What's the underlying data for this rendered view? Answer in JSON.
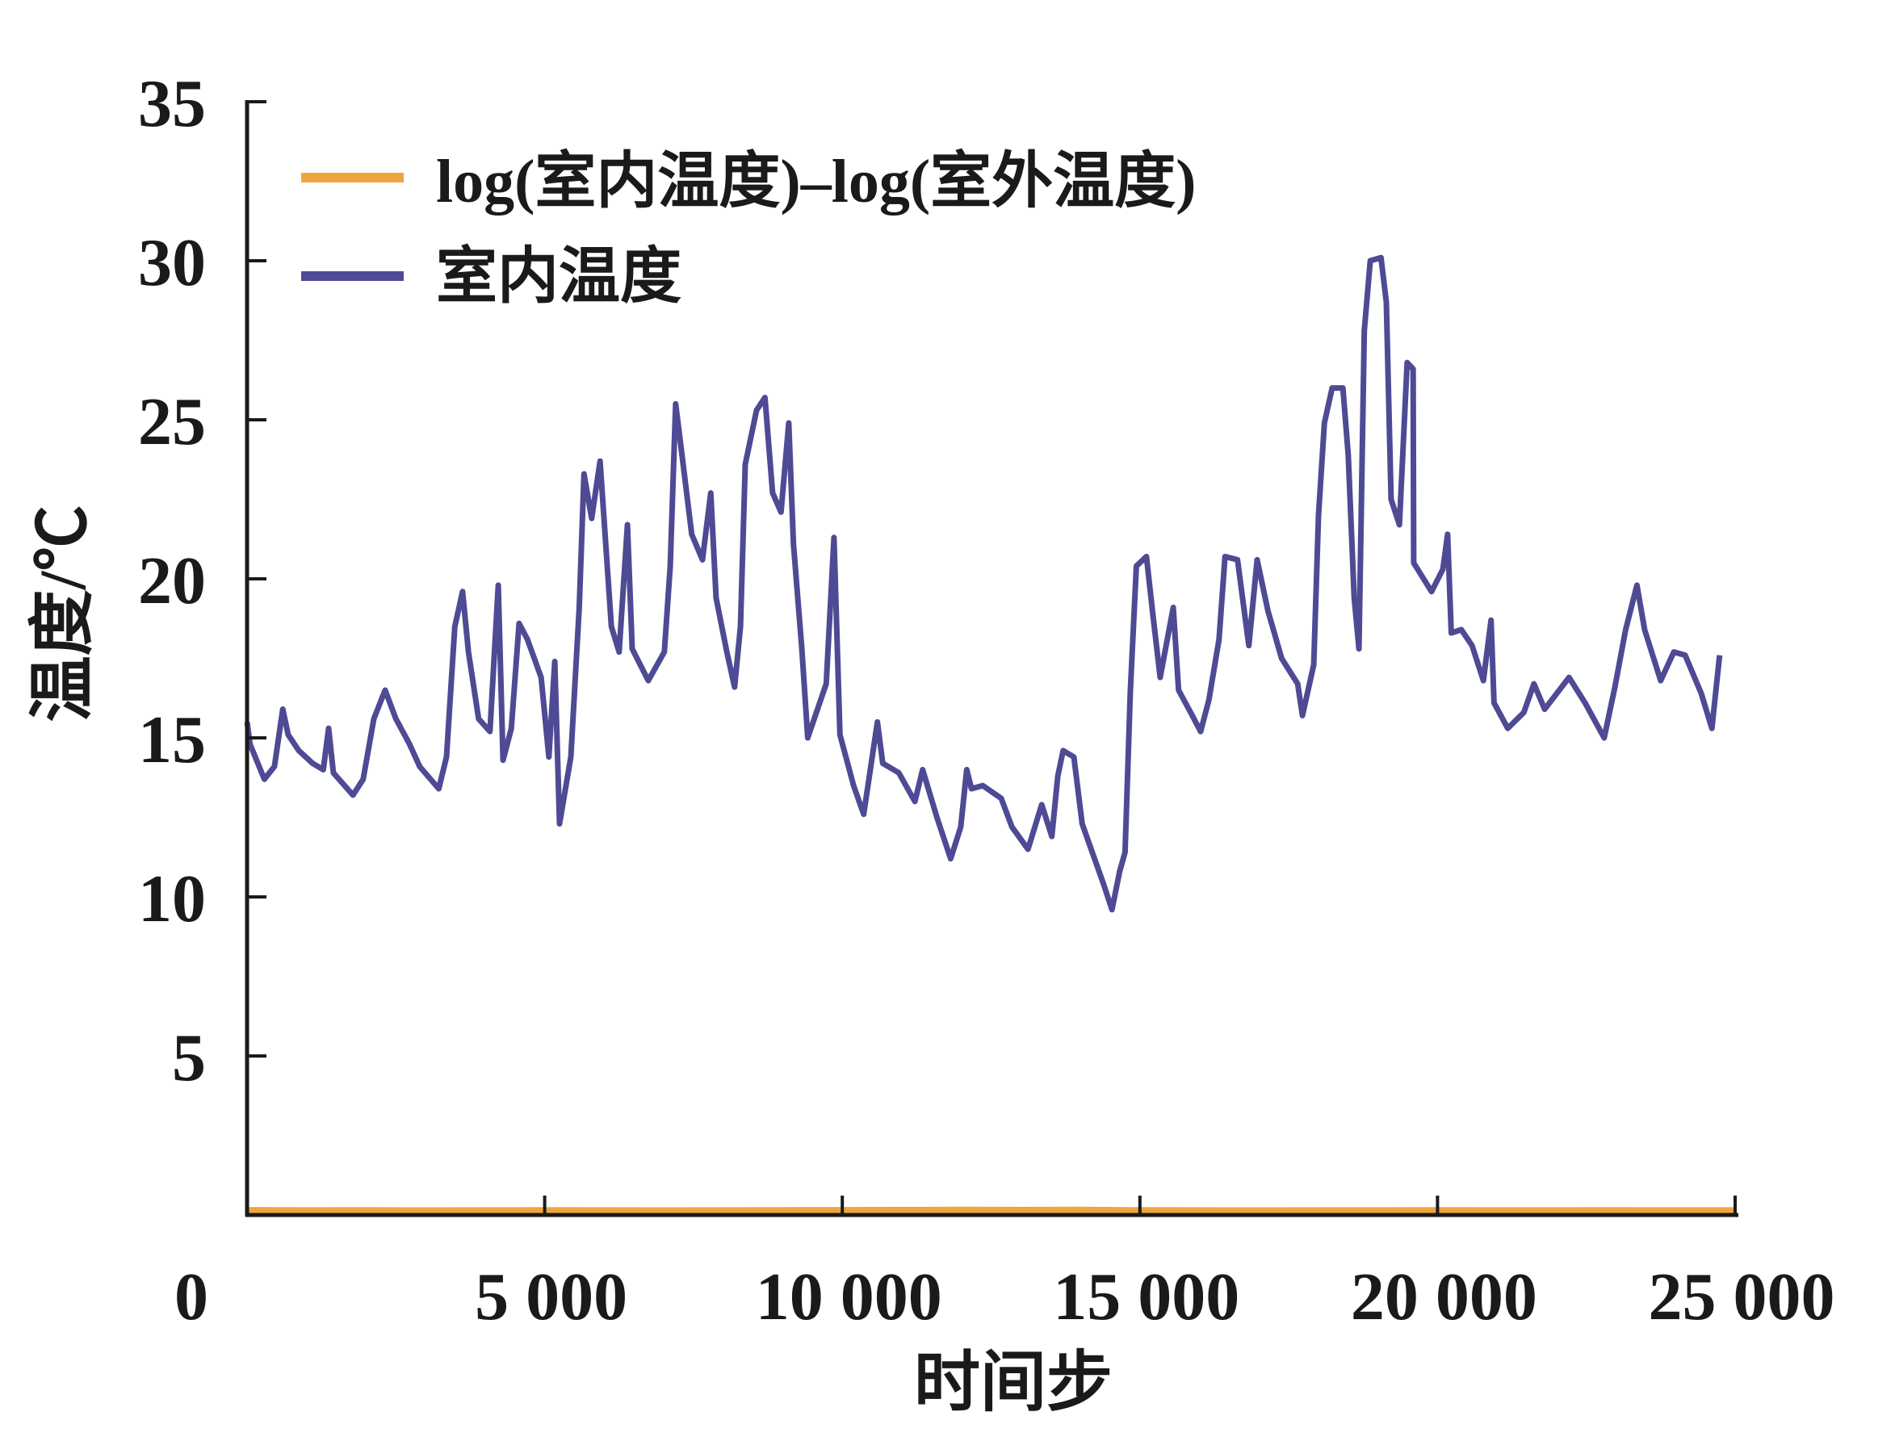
{
  "chart_data": {
    "type": "line",
    "title": "",
    "xlabel": "时间步",
    "ylabel": "温度/℃",
    "xlim": [
      0,
      25000
    ],
    "ylim": [
      0,
      35
    ],
    "x_ticks": [
      0,
      5000,
      10000,
      15000,
      20000,
      25000
    ],
    "x_tick_labels": [
      "0",
      "5 000",
      "10 000",
      "15 000",
      "20 000",
      "25 000"
    ],
    "y_ticks": [
      5,
      10,
      15,
      20,
      25,
      30,
      35
    ],
    "y_tick_labels": [
      "5",
      "10",
      "15",
      "20",
      "25",
      "30",
      "35"
    ],
    "grid": false,
    "legend_position": "top-left",
    "series": [
      {
        "name": "log(室内温度)–log(室外温度)",
        "color": "#F0A43E",
        "x": [
          0,
          1000,
          2000,
          3000,
          4000,
          5000,
          6000,
          7000,
          8000,
          9000,
          10000,
          11000,
          12000,
          13000,
          14000,
          15000,
          16000,
          17000,
          18000,
          19000,
          20000,
          21000,
          22000,
          23000,
          24000,
          25000
        ],
        "values": [
          0.15,
          0.1,
          0.12,
          0.08,
          0.1,
          0.12,
          0.1,
          0.08,
          0.1,
          0.12,
          0.15,
          0.18,
          0.2,
          0.18,
          0.2,
          0.12,
          0.1,
          0.08,
          0.1,
          0.1,
          0.12,
          0.1,
          0.1,
          0.12,
          0.1,
          0.1
        ]
      },
      {
        "name": "室内温度",
        "color": "#4F4A94",
        "x": [
          0,
          50,
          290,
          460,
          600,
          690,
          870,
          1100,
          1280,
          1370,
          1450,
          1780,
          1950,
          2130,
          2320,
          2500,
          2730,
          2900,
          3220,
          3350,
          3490,
          3620,
          3720,
          3890,
          4080,
          4220,
          4300,
          4440,
          4570,
          4710,
          4940,
          5070,
          5170,
          5250,
          5440,
          5580,
          5660,
          5790,
          5930,
          6120,
          6250,
          6390,
          6470,
          6740,
          7010,
          7110,
          7200,
          7280,
          7470,
          7650,
          7790,
          7880,
          8060,
          8190,
          8290,
          8370,
          8560,
          8700,
          8830,
          8970,
          9100,
          9180,
          9320,
          9420,
          9730,
          9860,
          9960,
          10190,
          10360,
          10590,
          10680,
          10950,
          11220,
          11350,
          11590,
          11820,
          11990,
          12090,
          12170,
          12360,
          12670,
          12850,
          13120,
          13350,
          13520,
          13620,
          13710,
          13890,
          14030,
          14200,
          14390,
          14530,
          14660,
          14750,
          14840,
          14940,
          15110,
          15210,
          15340,
          15560,
          15650,
          15880,
          16020,
          16160,
          16330,
          16430,
          16640,
          16830,
          16970,
          17150,
          17380,
          17650,
          17730,
          17920,
          18000,
          18100,
          18230,
          18410,
          18500,
          18600,
          18680,
          18770,
          18870,
          19050,
          19140,
          19220,
          19360,
          19490,
          19590,
          19600,
          19900,
          20090,
          20170,
          20230,
          20400,
          20580,
          20770,
          20900,
          20950,
          21180,
          21450,
          21620,
          21800,
          22210,
          22480,
          22800,
          22980,
          23160,
          23350,
          23480,
          23750,
          23970,
          24160,
          24430,
          24610,
          24740
        ],
        "values": [
          15.5,
          14.8,
          13.7,
          14.1,
          15.9,
          15.1,
          14.6,
          14.2,
          14.0,
          15.3,
          13.9,
          13.2,
          13.7,
          15.6,
          16.5,
          15.6,
          14.8,
          14.1,
          13.4,
          14.4,
          18.5,
          19.6,
          17.7,
          15.6,
          15.2,
          19.8,
          14.3,
          15.3,
          18.6,
          18.1,
          16.9,
          14.4,
          17.4,
          12.3,
          14.4,
          19.1,
          23.3,
          21.9,
          23.7,
          18.5,
          17.7,
          21.7,
          17.8,
          16.8,
          17.7,
          20.4,
          25.5,
          24.3,
          21.4,
          20.6,
          22.7,
          19.4,
          17.7,
          16.6,
          18.5,
          23.6,
          25.3,
          25.7,
          22.7,
          22.1,
          24.9,
          21.1,
          17.8,
          15.0,
          16.7,
          21.3,
          15.1,
          13.5,
          12.6,
          15.5,
          14.2,
          13.9,
          13.0,
          14.0,
          12.5,
          11.2,
          12.2,
          14.0,
          13.4,
          13.5,
          13.1,
          12.2,
          11.5,
          12.9,
          11.9,
          13.8,
          14.6,
          14.4,
          12.3,
          11.4,
          10.4,
          9.6,
          10.8,
          11.4,
          16.5,
          20.4,
          20.7,
          19.0,
          16.9,
          19.1,
          16.5,
          15.7,
          15.2,
          16.2,
          18.1,
          20.7,
          20.6,
          17.9,
          20.6,
          19.0,
          17.5,
          16.7,
          15.7,
          17.3,
          22.0,
          24.9,
          26.0,
          26.0,
          23.9,
          19.4,
          17.8,
          27.8,
          30.0,
          30.1,
          28.7,
          22.5,
          21.7,
          26.8,
          26.6,
          20.5,
          19.6,
          20.3,
          21.4,
          18.3,
          18.4,
          17.9,
          16.8,
          18.7,
          16.1,
          15.3,
          15.8,
          16.7,
          15.9,
          16.9,
          16.1,
          15.0,
          16.6,
          18.4,
          19.8,
          18.4,
          16.8,
          17.7,
          17.6,
          16.4,
          15.3,
          17.6
        ]
      }
    ]
  }
}
